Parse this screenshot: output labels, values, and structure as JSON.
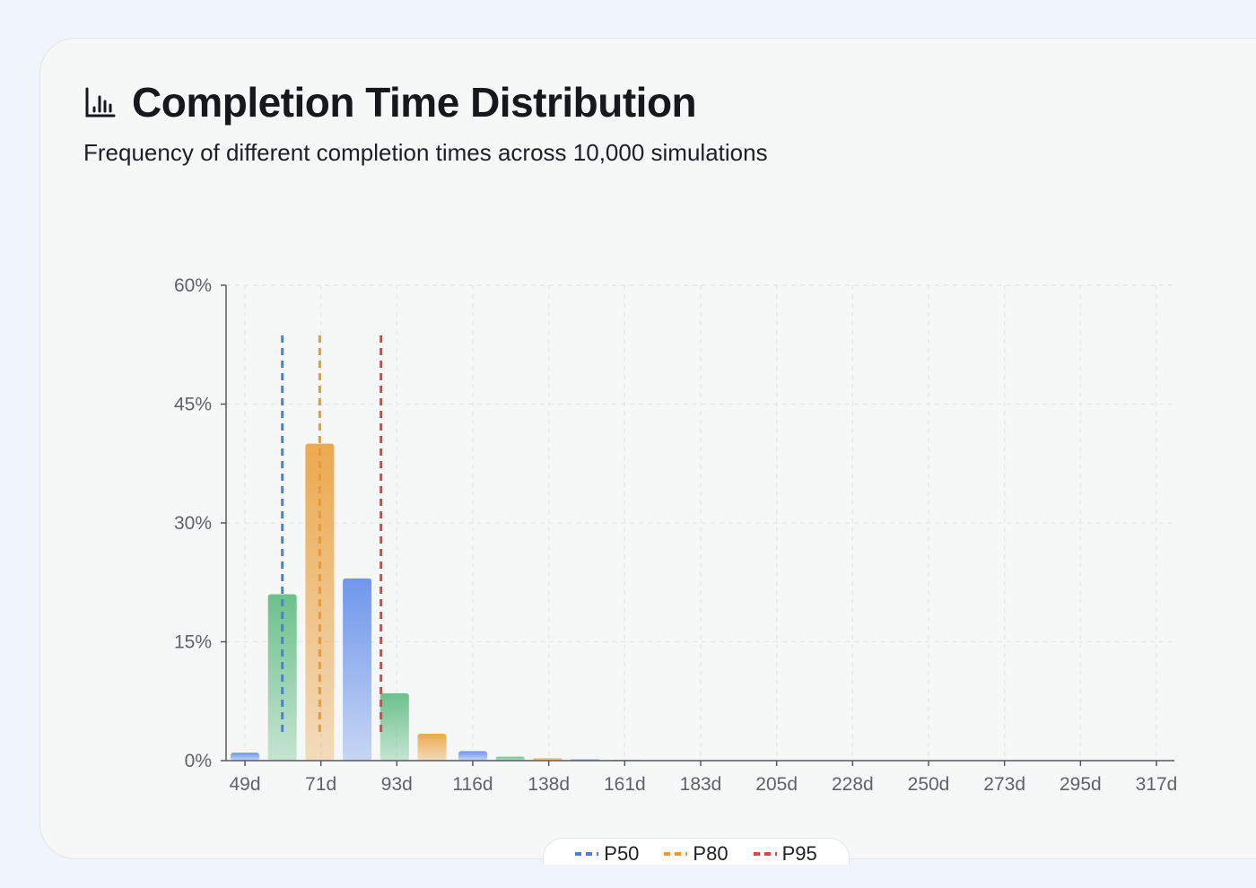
{
  "header": {
    "title": "Completion Time Distribution",
    "subtitle": "Frequency of different completion times across 10,000 simulations",
    "icon": "bar-chart-icon"
  },
  "colors": {
    "blue": "#6f97ec",
    "green": "#6cc18c",
    "orange": "#eca94f",
    "p50": "#4a7fe0",
    "p80": "#eb9a33",
    "p95": "#d94848",
    "axis": "#555a60",
    "grid": "#e4e6e8"
  },
  "chart_data": {
    "type": "bar",
    "title": "Completion Time Distribution",
    "xlabel": "",
    "ylabel": "",
    "ylim": [
      0,
      60
    ],
    "y_ticks": [
      "0%",
      "15%",
      "30%",
      "45%",
      "60%"
    ],
    "x_tick_labels": [
      "49d",
      "71d",
      "93d",
      "116d",
      "138d",
      "161d",
      "183d",
      "205d",
      "228d",
      "250d",
      "273d",
      "295d",
      "317d"
    ],
    "bins": [
      {
        "x": 49,
        "value": 1.0
      },
      {
        "x": 60,
        "value": 21.0
      },
      {
        "x": 71,
        "value": 40.0
      },
      {
        "x": 82,
        "value": 23.0
      },
      {
        "x": 93,
        "value": 8.5
      },
      {
        "x": 104,
        "value": 3.4
      },
      {
        "x": 116,
        "value": 1.2
      },
      {
        "x": 127,
        "value": 0.5
      },
      {
        "x": 138,
        "value": 0.3
      },
      {
        "x": 149,
        "value": 0.15
      },
      {
        "x": 161,
        "value": 0.08
      },
      {
        "x": 172,
        "value": 0.05
      },
      {
        "x": 183,
        "value": 0.03
      },
      {
        "x": 194,
        "value": 0.02
      },
      {
        "x": 205,
        "value": 0.01
      },
      {
        "x": 216,
        "value": 0.01
      },
      {
        "x": 228,
        "value": 0.01
      },
      {
        "x": 239,
        "value": 0.0
      },
      {
        "x": 250,
        "value": 0.0
      },
      {
        "x": 261,
        "value": 0.0
      },
      {
        "x": 273,
        "value": 0.0
      },
      {
        "x": 284,
        "value": 0.0
      },
      {
        "x": 295,
        "value": 0.0
      },
      {
        "x": 306,
        "value": 0.0
      },
      {
        "x": 317,
        "value": 0.0
      }
    ],
    "bar_color_cycle": [
      "blue",
      "green",
      "orange"
    ],
    "percentiles": [
      {
        "name": "P50",
        "x": 60,
        "color": "p50"
      },
      {
        "name": "P80",
        "x": 71,
        "color": "p80"
      },
      {
        "name": "P95",
        "x": 89,
        "color": "p95"
      }
    ],
    "grid": true,
    "legend_position": "bottom-center"
  }
}
